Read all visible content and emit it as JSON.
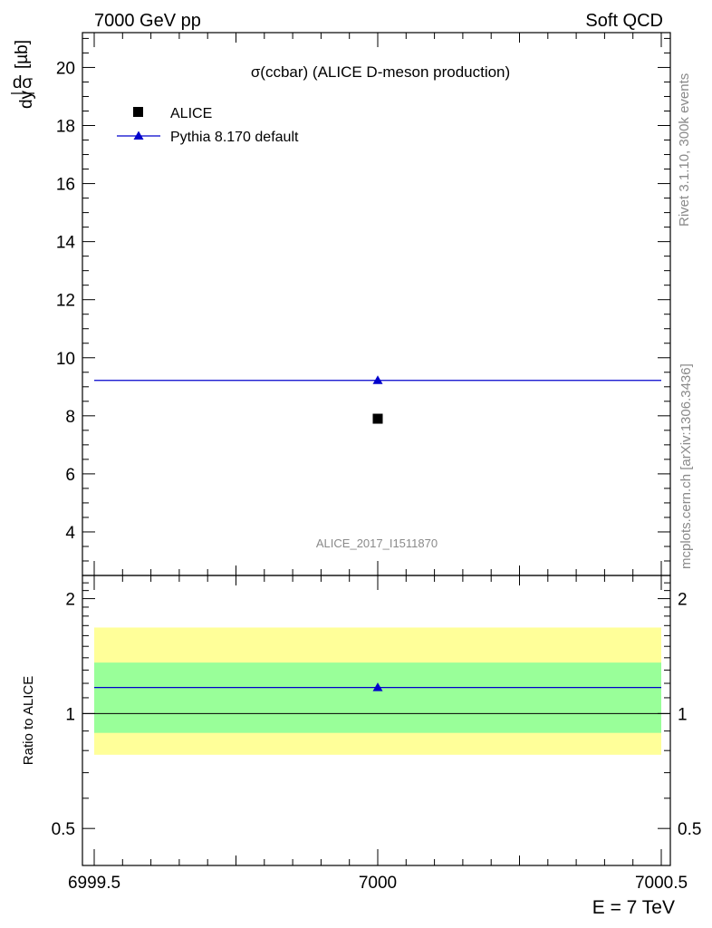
{
  "header": {
    "left": "7000 GeV pp",
    "right": "Soft QCD"
  },
  "side_labels": {
    "rivet": "Rivet 3.1.10,  300k events",
    "mcplots": "mcplots.cern.ch [arXiv:1306.3436]"
  },
  "chart_data": [
    {
      "type": "scatter",
      "title": "σ(ccbar) (ALICE D-meson production)",
      "ylabel_num": "dσ",
      "ylabel_den": "dy",
      "ylabel_unit": "[µb]",
      "xlim": [
        6999.5,
        7000.5
      ],
      "ylim": [
        2.5,
        21.2
      ],
      "yticks": [
        4,
        6,
        8,
        10,
        12,
        14,
        16,
        18,
        20
      ],
      "ytick_labels": [
        "4",
        "6",
        "8",
        "10",
        "12",
        "14",
        "16",
        "18",
        "20"
      ],
      "watermark": "ALICE_2017_I1511870",
      "legend_position": "top-left",
      "series": [
        {
          "name": "ALICE",
          "marker": "square",
          "color": "#000000",
          "x": [
            7000
          ],
          "y": [
            7.9
          ]
        },
        {
          "name": "Pythia 8.170 default",
          "marker": "triangle",
          "color": "#0000cc",
          "x": [
            7000
          ],
          "y": [
            9.22
          ],
          "xerr": [
            [
              6999.5,
              7000.5
            ]
          ]
        }
      ]
    },
    {
      "type": "scatter",
      "ylabel": "Ratio to ALICE",
      "xlabel": "E = 7 TeV",
      "yscale": "log",
      "xlim": [
        6999.5,
        7000.5
      ],
      "ylim": [
        0.4,
        2.3
      ],
      "yticks": [
        0.5,
        1,
        2
      ],
      "ytick_labels": [
        "0.5",
        "1",
        "2"
      ],
      "xticks": [
        6999.5,
        7000,
        7000.5
      ],
      "xtick_labels": [
        "6999.5",
        "7000",
        "7000.5"
      ],
      "bands": [
        {
          "name": "outer",
          "color": "#ffff99",
          "low": 0.78,
          "high": 1.68
        },
        {
          "name": "inner",
          "color": "#99ff99",
          "low": 0.89,
          "high": 1.36
        }
      ],
      "reference_line": 1,
      "series": [
        {
          "name": "Pythia 8.170 default",
          "marker": "triangle",
          "color": "#0000cc",
          "x": [
            7000
          ],
          "y": [
            1.17
          ]
        }
      ]
    }
  ]
}
